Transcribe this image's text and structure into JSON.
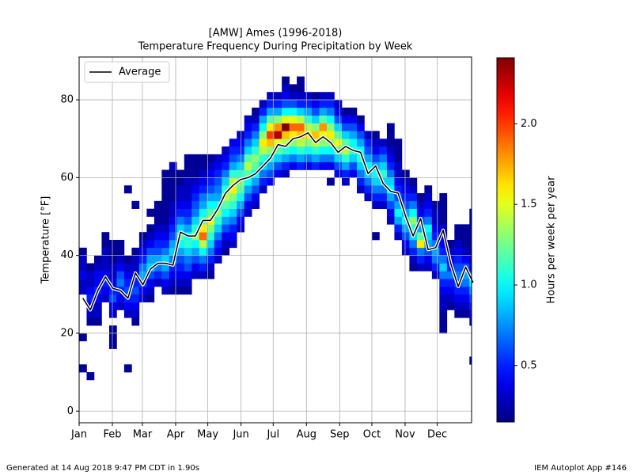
{
  "chart_data": {
    "type": "heatmap",
    "title": "[AMW] Ames (1996-2018)",
    "subtitle": "Temperature Frequency During Precipitation by Week",
    "ylabel": "Temperature [°F]",
    "xlim": [
      1,
      367
    ],
    "xticks": [
      {
        "value": 1,
        "label": "Jan"
      },
      {
        "value": 32,
        "label": "Feb"
      },
      {
        "value": 60,
        "label": "Mar"
      },
      {
        "value": 91,
        "label": "Apr"
      },
      {
        "value": 121,
        "label": "May"
      },
      {
        "value": 152,
        "label": "Jun"
      },
      {
        "value": 182,
        "label": "Jul"
      },
      {
        "value": 213,
        "label": "Aug"
      },
      {
        "value": 244,
        "label": "Sep"
      },
      {
        "value": 274,
        "label": "Oct"
      },
      {
        "value": 305,
        "label": "Nov"
      },
      {
        "value": 335,
        "label": "Dec"
      }
    ],
    "ylim": [
      -3,
      91
    ],
    "yticks": [
      0,
      20,
      40,
      60,
      80
    ],
    "grid": true,
    "cmap": "jet",
    "zlim": [
      0.15,
      2.41
    ],
    "zticks": [
      0.5,
      {
        "value": 1,
        "label": "1.0"
      },
      1.5,
      {
        "value": 2,
        "label": "2.0"
      }
    ],
    "colorbar_label": "Hours per week per year",
    "legend": "upper left",
    "series": [
      {
        "name": "Average",
        "color": "#000000",
        "values": [
          29,
          26,
          31,
          34.5,
          31.5,
          31,
          29,
          35.5,
          32.5,
          36.5,
          38,
          38,
          37.5,
          46,
          45,
          45,
          49,
          49,
          52,
          56,
          58,
          59.5,
          60,
          61,
          63,
          65,
          68.5,
          68,
          70,
          70.5,
          71.5,
          69,
          70.5,
          69,
          66.5,
          68,
          67,
          66.5,
          61,
          63,
          58.5,
          56.5,
          56,
          50,
          45,
          49.5,
          41.5,
          42,
          46.5,
          38,
          32,
          37,
          33
        ]
      }
    ],
    "columns": [
      {
        "low": 10,
        "values": [
          0.2,
          null,
          null,
          null,
          0.2,
          null,
          null,
          null,
          null,
          null,
          0.3,
          0.3,
          0.4,
          0.3,
          0.3,
          0.2
        ]
      },
      {
        "low": 8,
        "values": [
          0.2,
          null,
          null,
          null,
          null,
          null,
          null,
          0.2,
          0.3,
          0.4,
          0.5,
          0.4,
          0.3,
          0.3,
          0.2
        ]
      },
      {
        "low": 22,
        "values": [
          0.2,
          0.3,
          0.3,
          0.4,
          0.5,
          0.4,
          0.4,
          0.3,
          0.2
        ]
      },
      {
        "low": 28,
        "values": [
          0.3,
          0.4,
          0.5,
          0.4,
          0.3,
          0.3,
          0.3,
          0.2,
          0.2
        ]
      },
      {
        "low": 16,
        "values": [
          0.2,
          0.2,
          0.2,
          null,
          0.3,
          0.4,
          0.6,
          0.5,
          0.4,
          0.3,
          0.3,
          0.2,
          0.2,
          0.2
        ]
      },
      {
        "low": 26,
        "values": [
          0.3,
          0.4,
          0.5,
          0.7,
          0.6,
          0.4,
          0.3,
          0.2,
          0.2
        ]
      },
      {
        "low": 10,
        "values": [
          0.2,
          null,
          null,
          null,
          null,
          null,
          null,
          0.3,
          0.4,
          0.5,
          0.6,
          0.5,
          0.4,
          0.3,
          0.2,
          null,
          null,
          null,
          null,
          null,
          null,
          null,
          null,
          0.2
        ]
      },
      {
        "low": 22,
        "values": [
          0.2,
          0.3,
          0.4,
          0.5,
          0.6,
          0.5,
          0.4,
          0.3,
          0.3,
          0.2,
          null,
          null,
          null,
          null,
          null,
          0.2
        ]
      },
      {
        "low": 28,
        "values": [
          0.3,
          0.4,
          0.6,
          0.8,
          0.7,
          0.5,
          0.4,
          0.3,
          0.2
        ]
      },
      {
        "low": 28,
        "values": [
          0.2,
          0.3,
          0.4,
          0.6,
          0.9,
          0.8,
          0.6,
          0.4,
          0.3,
          0.2,
          null,
          0.2
        ]
      },
      {
        "low": 32,
        "values": [
          0.3,
          0.5,
          0.7,
          0.8,
          0.6,
          0.5,
          0.4,
          0.3,
          0.2,
          0.2,
          0.2
        ]
      },
      {
        "low": 30,
        "values": [
          0.3,
          0.4,
          0.6,
          0.8,
          0.9,
          0.7,
          0.5,
          0.4,
          0.3,
          0.2,
          0.2,
          0.2,
          0.2,
          0.2,
          0.2,
          0.2
        ]
      },
      {
        "low": 30,
        "values": [
          0.2,
          0.3,
          0.4,
          0.5,
          0.7,
          0.9,
          0.8,
          0.6,
          0.5,
          0.4,
          0.3,
          0.3,
          0.2,
          0.2,
          0.2,
          0.2,
          0.3
        ]
      },
      {
        "low": 30,
        "values": [
          0.2,
          0.3,
          0.4,
          0.5,
          0.6,
          0.8,
          1.0,
          1.2,
          0.9,
          0.7,
          0.5,
          0.4,
          0.3,
          0.3,
          0.2,
          0.2
        ]
      },
      {
        "low": 30,
        "values": [
          0.2,
          0.3,
          0.4,
          0.6,
          0.7,
          0.9,
          1.1,
          1.0,
          0.8,
          0.6,
          0.5,
          0.4,
          0.3,
          0.3,
          0.3,
          0.2,
          0.2,
          0.2
        ]
      },
      {
        "low": 34,
        "values": [
          0.3,
          0.4,
          0.6,
          0.8,
          1.0,
          1.3,
          1.1,
          0.9,
          0.7,
          0.6,
          0.5,
          0.4,
          0.3,
          0.2,
          0.2,
          0.2
        ]
      },
      {
        "low": 34,
        "values": [
          0.3,
          0.5,
          0.7,
          1.0,
          1.4,
          1.9,
          1.6,
          1.2,
          1.0,
          0.8,
          0.7,
          0.5,
          0.4,
          0.3,
          0.2,
          0.2
        ]
      },
      {
        "low": 34,
        "values": [
          0.2,
          0.3,
          0.5,
          0.7,
          0.9,
          1.1,
          1.3,
          1.6,
          1.2,
          1.0,
          0.8,
          0.6,
          0.5,
          0.4,
          0.3,
          0.2
        ]
      },
      {
        "low": 38,
        "values": [
          0.3,
          0.4,
          0.5,
          0.7,
          0.9,
          1.1,
          1.3,
          1.0,
          0.8,
          0.7,
          0.6,
          0.5,
          0.4,
          0.3
        ]
      },
      {
        "low": 40,
        "values": [
          0.2,
          0.3,
          0.4,
          0.6,
          0.8,
          1.0,
          1.2,
          1.4,
          1.1,
          0.9,
          0.7,
          0.5,
          0.4,
          0.3
        ]
      },
      {
        "low": 42,
        "values": [
          0.3,
          0.4,
          0.5,
          0.7,
          0.9,
          1.1,
          1.3,
          1.6,
          1.4,
          1.1,
          0.8,
          0.6,
          0.5,
          0.4
        ]
      },
      {
        "low": 46,
        "values": [
          0.3,
          0.4,
          0.6,
          0.8,
          1.0,
          1.2,
          1.3,
          1.1,
          0.9,
          0.7,
          0.5,
          0.4,
          0.3
        ]
      },
      {
        "low": 50,
        "values": [
          0.3,
          0.4,
          0.6,
          0.8,
          1.0,
          1.2,
          1.4,
          1.2,
          0.9,
          0.7,
          0.5,
          0.4,
          0.3
        ]
      },
      {
        "low": 52,
        "values": [
          0.3,
          0.4,
          0.6,
          0.8,
          1.0,
          1.2,
          1.3,
          1.1,
          0.9,
          0.7,
          0.5,
          0.3,
          0.2
        ]
      },
      {
        "low": 56,
        "values": [
          0.3,
          0.5,
          0.7,
          0.9,
          1.1,
          1.4,
          1.6,
          1.3,
          1.0,
          0.8,
          0.5,
          0.3
        ]
      },
      {
        "low": 58,
        "values": [
          0.4,
          0.6,
          0.8,
          1.0,
          1.3,
          1.7,
          2.0,
          1.6,
          1.2,
          0.8,
          0.5,
          0.3
        ]
      },
      {
        "low": 60,
        "values": [
          0.4,
          0.6,
          0.9,
          1.2,
          1.5,
          2.3,
          1.8,
          1.3,
          0.8,
          0.5,
          0.3
        ]
      },
      {
        "low": 60,
        "values": [
          0.3,
          0.5,
          0.8,
          1.1,
          1.4,
          1.7,
          2.4,
          1.5,
          1.0,
          0.6,
          0.4,
          0.3,
          0.2
        ]
      },
      {
        "low": 62,
        "values": [
          0.4,
          0.7,
          1.0,
          1.3,
          1.6,
          1.9,
          1.5,
          1.0,
          0.6,
          0.3,
          0.2
        ]
      },
      {
        "low": 62,
        "values": [
          0.5,
          0.8,
          1.1,
          1.4,
          1.7,
          1.9,
          1.4,
          0.9,
          0.5,
          0.3,
          0.2,
          0.2
        ]
      },
      {
        "low": 62,
        "values": [
          0.4,
          0.7,
          1.0,
          1.3,
          1.6,
          1.4,
          1.1,
          0.8,
          0.5,
          0.3
        ]
      },
      {
        "low": 62,
        "values": [
          0.5,
          0.8,
          1.1,
          1.4,
          1.7,
          1.3,
          0.9,
          0.6,
          0.4,
          0.2,
          null,
          null,
          null,
          null,
          null,
          null,
          null,
          null,
          0.3
        ]
      },
      {
        "low": 62,
        "values": [
          0.4,
          0.7,
          1.0,
          1.3,
          1.5,
          1.8,
          1.2,
          0.8,
          0.5,
          0.3
        ]
      },
      {
        "low": 58,
        "values": [
          0.2,
          null,
          0.4,
          0.7,
          1.0,
          1.3,
          1.6,
          1.3,
          1.0,
          0.7,
          0.5,
          0.3
        ]
      },
      {
        "low": 60,
        "values": [
          0.4,
          0.6,
          0.9,
          1.2,
          1.5,
          1.2,
          0.9,
          0.6,
          0.4,
          0.3
        ]
      },
      {
        "low": 58,
        "values": [
          0.3,
          0.5,
          0.8,
          1.1,
          1.4,
          1.2,
          0.9,
          0.6,
          0.4,
          0.2
        ]
      },
      {
        "low": 60,
        "values": [
          0.4,
          0.6,
          0.9,
          1.1,
          1.0,
          0.8,
          0.6,
          0.4,
          0.2
        ]
      },
      {
        "low": 56,
        "values": [
          0.3,
          0.5,
          0.7,
          0.9,
          1.1,
          1.0,
          0.8,
          0.6,
          0.4,
          0.2
        ]
      },
      {
        "low": 54,
        "values": [
          0.3,
          0.5,
          0.7,
          0.9,
          1.0,
          0.8,
          0.6,
          0.5,
          0.3
        ]
      },
      {
        "low": 44,
        "values": [
          0.2,
          null,
          null,
          null,
          0.3,
          0.5,
          0.7,
          0.9,
          1.0,
          0.8,
          0.6,
          0.4,
          0.3,
          0.2
        ]
      },
      {
        "low": 52,
        "values": [
          0.3,
          0.5,
          0.7,
          0.9,
          1.1,
          0.9,
          0.7,
          0.5,
          0.3
        ]
      },
      {
        "low": 48,
        "values": [
          0.3,
          0.4,
          0.6,
          0.8,
          1.0,
          0.9,
          0.7,
          0.5,
          0.4,
          0.3,
          0.2,
          0.2,
          0.2
        ]
      },
      {
        "low": 44,
        "values": [
          0.3,
          0.5,
          0.8,
          1.0,
          0.8,
          0.6,
          0.5,
          0.4,
          0.3,
          0.3,
          0.2,
          0.2,
          0.2
        ]
      },
      {
        "low": 40,
        "values": [
          0.3,
          0.4,
          0.6,
          0.8,
          1.0,
          0.8,
          0.6,
          0.5,
          0.4,
          0.3,
          0.2
        ]
      },
      {
        "low": 36,
        "values": [
          0.2,
          0.3,
          0.5,
          0.7,
          0.9,
          1.1,
          1.3,
          1.0,
          0.7,
          0.5,
          0.3,
          0.2
        ]
      },
      {
        "low": 36,
        "values": [
          0.3,
          0.5,
          0.7,
          1.6,
          1.2,
          0.8,
          0.6,
          0.4,
          0.3,
          0.2
        ]
      },
      {
        "low": 36,
        "values": [
          0.3,
          0.4,
          0.6,
          0.8,
          0.9,
          1.0,
          0.7,
          0.5,
          0.4,
          0.3,
          0.2
        ]
      },
      {
        "low": 34,
        "values": [
          0.3,
          0.5,
          0.7,
          0.8,
          0.7,
          0.5,
          0.4,
          0.3,
          0.3,
          0.2
        ]
      },
      {
        "low": 20,
        "values": [
          0.2,
          0.2,
          0.2,
          0.3,
          0.3,
          0.4,
          0.5,
          0.7,
          0.9,
          0.7,
          0.5,
          0.4,
          0.3,
          0.3,
          0.2,
          0.2,
          0.2,
          0.2
        ]
      },
      {
        "low": 26,
        "values": [
          0.2,
          0.3,
          0.4,
          0.5,
          0.7,
          0.5,
          0.4,
          0.3,
          0.2
        ]
      },
      {
        "low": 24,
        "values": [
          0.2,
          0.3,
          0.4,
          0.5,
          0.6,
          0.7,
          0.6,
          0.5,
          0.4,
          0.3,
          0.2,
          0.2
        ]
      },
      {
        "low": 24,
        "values": [
          0.2,
          0.3,
          0.4,
          0.5,
          0.7,
          0.8,
          0.6,
          0.4,
          0.3,
          0.2,
          0.2,
          0.2
        ]
      },
      {
        "low": 12,
        "values": [
          0.2,
          null,
          null,
          null,
          null,
          0.3,
          0.4,
          0.5,
          0.6,
          0.8,
          1.0,
          0.6,
          0.4,
          0.3,
          0.2,
          0.2,
          0.2,
          0.2,
          0.2,
          0.2
        ]
      }
    ]
  },
  "footer": {
    "left": "Generated at 14 Aug 2018 9:47 PM CDT in 1.90s",
    "right": "IEM Autoplot App #146"
  }
}
